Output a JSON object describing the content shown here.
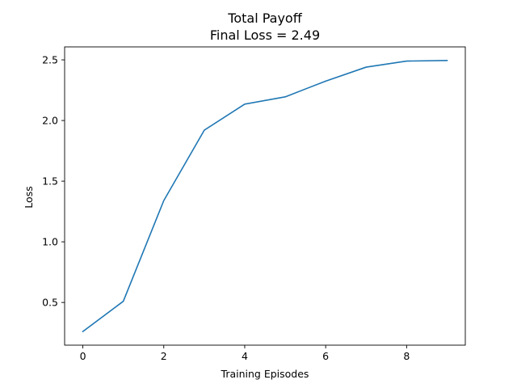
{
  "chart_data": {
    "type": "line",
    "title": "Total Payoff",
    "subtitle": "Final Loss = 2.49",
    "xlabel": "Training Episodes",
    "ylabel": "Loss",
    "x": [
      0,
      1,
      2,
      3,
      4,
      5,
      6,
      7,
      8,
      9
    ],
    "series": [
      {
        "values": [
          0.26,
          0.51,
          1.34,
          1.92,
          2.135,
          2.195,
          2.325,
          2.44,
          2.49,
          2.495
        ]
      }
    ],
    "xlim": [
      -0.45,
      9.45
    ],
    "ylim": [
      0.148,
      2.607
    ],
    "xticks": [
      0,
      2,
      4,
      6,
      8
    ],
    "xtick_labels": [
      "0",
      "2",
      "4",
      "6",
      "8"
    ],
    "yticks": [
      0.5,
      1.0,
      1.5,
      2.0,
      2.5
    ],
    "ytick_labels": [
      "0.5",
      "1.0",
      "1.5",
      "2.0",
      "2.5"
    ],
    "grid": false,
    "legend": "none",
    "line_color": "#1f77b4"
  }
}
